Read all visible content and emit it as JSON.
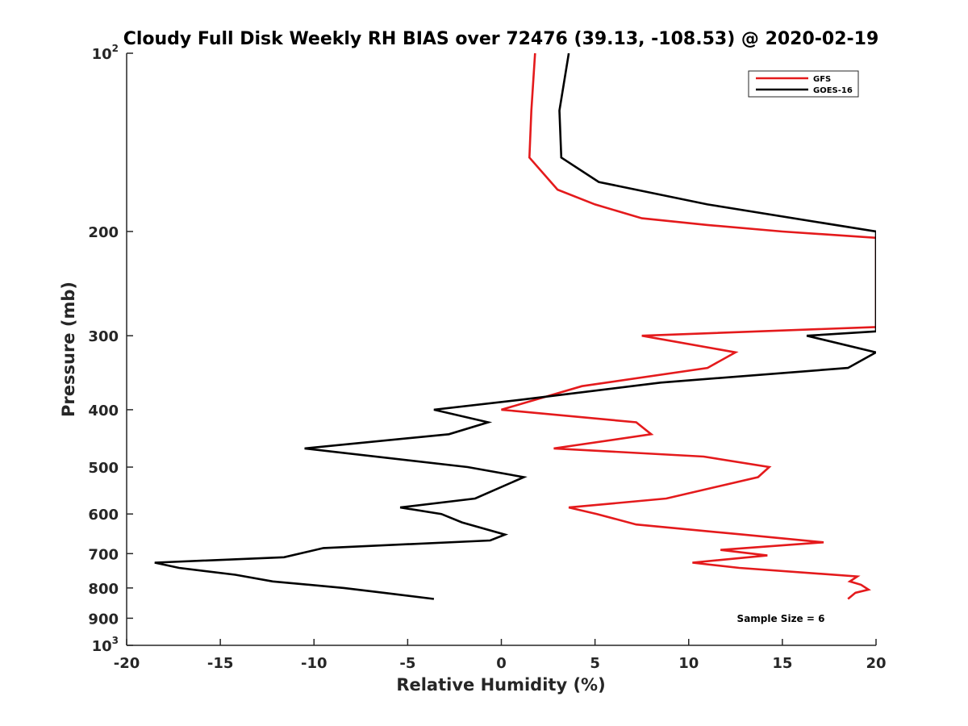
{
  "chart_data": {
    "type": "line",
    "title": "Cloudy Full Disk Weekly RH BIAS over 72476 (39.13, -108.53) @ 2020-02-19",
    "xlabel": "Relative Humidity (%)",
    "ylabel": "Pressure (mb)",
    "xlim": [
      -20,
      20
    ],
    "ylim": [
      1000,
      100
    ],
    "y_scale": "log",
    "x_ticks": [
      "-20",
      "-15",
      "-10",
      "-5",
      "0",
      "5",
      "10",
      "15",
      "20"
    ],
    "y_ticks": [
      {
        "value": 100,
        "base": "10",
        "exp": "2"
      },
      {
        "value": 200,
        "label": "200"
      },
      {
        "value": 300,
        "label": "300"
      },
      {
        "value": 400,
        "label": "400"
      },
      {
        "value": 500,
        "label": "500"
      },
      {
        "value": 600,
        "label": "600"
      },
      {
        "value": 700,
        "label": "700"
      },
      {
        "value": 800,
        "label": "800"
      },
      {
        "value": 900,
        "label": "900"
      },
      {
        "value": 1000,
        "base": "10",
        "exp": "3"
      }
    ],
    "legend": {
      "placement": "top-right"
    },
    "annotation": "Sample Size = 6",
    "series": [
      {
        "name": "GFS",
        "color": "#e41a1c",
        "points": [
          [
            1.8,
            100
          ],
          [
            1.6,
            125
          ],
          [
            1.5,
            150
          ],
          [
            3.0,
            170
          ],
          [
            5.0,
            180
          ],
          [
            7.5,
            190
          ],
          [
            11.0,
            195
          ],
          [
            15.0,
            200
          ],
          [
            20.0,
            205
          ],
          [
            20.0,
            290
          ],
          [
            7.5,
            300
          ],
          [
            12.5,
            320
          ],
          [
            11.0,
            340
          ],
          [
            4.3,
            365
          ],
          [
            0.0,
            400
          ],
          [
            7.2,
            420
          ],
          [
            8.0,
            440
          ],
          [
            2.8,
            465
          ],
          [
            10.8,
            480
          ],
          [
            14.3,
            500
          ],
          [
            13.7,
            520
          ],
          [
            8.8,
            565
          ],
          [
            3.6,
            585
          ],
          [
            5.1,
            600
          ],
          [
            7.2,
            625
          ],
          [
            12.9,
            650
          ],
          [
            17.2,
            670
          ],
          [
            11.7,
            690
          ],
          [
            14.2,
            705
          ],
          [
            10.2,
            725
          ],
          [
            12.7,
            740
          ],
          [
            19.0,
            765
          ],
          [
            18.6,
            780
          ],
          [
            19.2,
            790
          ],
          [
            19.6,
            805
          ],
          [
            18.9,
            815
          ],
          [
            18.5,
            835
          ]
        ]
      },
      {
        "name": "GOES-16",
        "color": "#000000",
        "points": [
          [
            3.6,
            100
          ],
          [
            3.1,
            125
          ],
          [
            3.2,
            150
          ],
          [
            5.2,
            165
          ],
          [
            11.0,
            180
          ],
          [
            20.0,
            200
          ],
          [
            20.0,
            295
          ],
          [
            16.3,
            300
          ],
          [
            20.0,
            320
          ],
          [
            18.5,
            340
          ],
          [
            8.5,
            360
          ],
          [
            1.0,
            385
          ],
          [
            -3.6,
            400
          ],
          [
            -0.7,
            420
          ],
          [
            -2.8,
            440
          ],
          [
            -10.5,
            465
          ],
          [
            -1.8,
            500
          ],
          [
            1.2,
            520
          ],
          [
            -1.4,
            565
          ],
          [
            -5.4,
            585
          ],
          [
            -3.2,
            600
          ],
          [
            -2.1,
            620
          ],
          [
            0.2,
            650
          ],
          [
            -0.6,
            665
          ],
          [
            -9.5,
            685
          ],
          [
            -11.6,
            710
          ],
          [
            -18.5,
            725
          ],
          [
            -17.2,
            740
          ],
          [
            -14.2,
            760
          ],
          [
            -12.2,
            780
          ],
          [
            -8.4,
            800
          ],
          [
            -6.3,
            815
          ],
          [
            -3.6,
            835
          ]
        ]
      }
    ]
  }
}
